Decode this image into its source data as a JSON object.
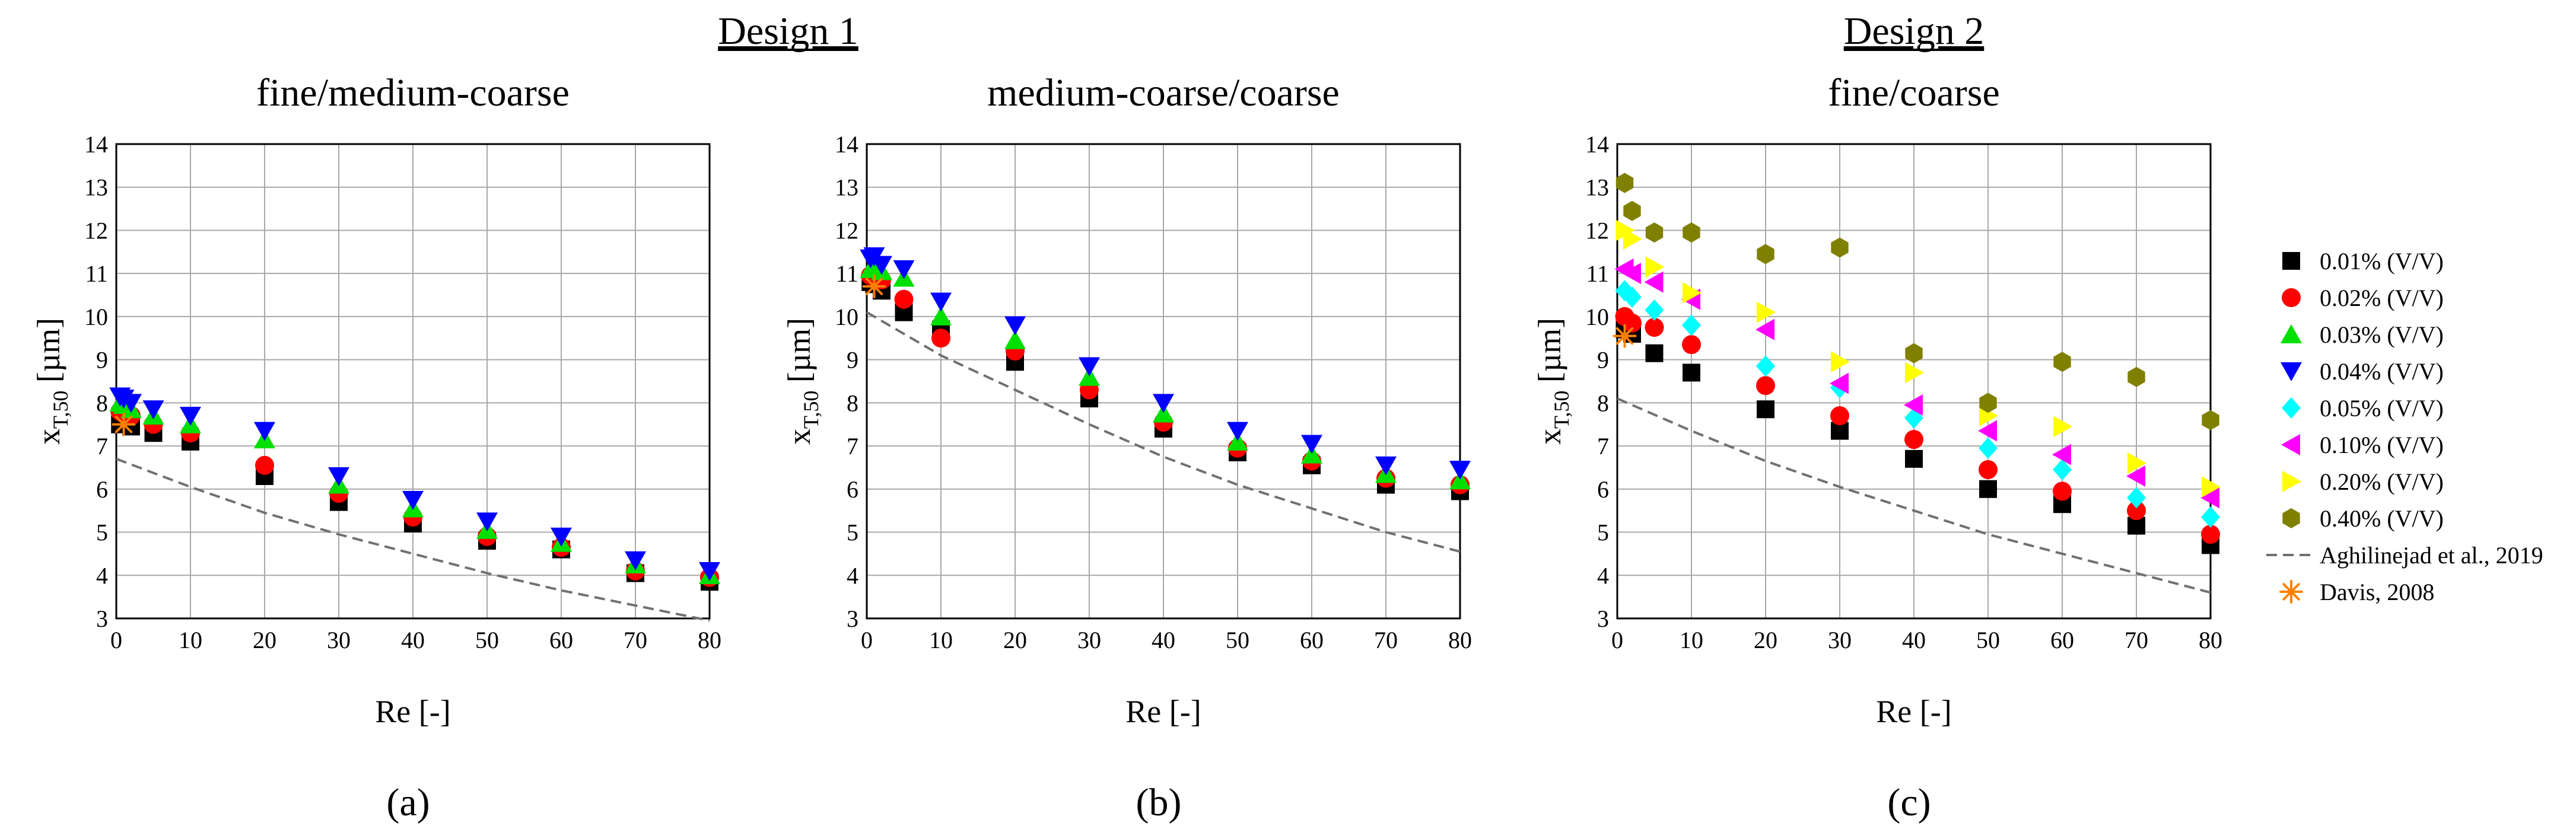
{
  "design_labels": [
    {
      "text": "Design 1",
      "over": [
        0,
        1
      ]
    },
    {
      "text": "Design 2",
      "over": [
        2
      ]
    }
  ],
  "legend": [
    {
      "name": "0.01% (V/V)",
      "marker": "square",
      "color": "#000000"
    },
    {
      "name": "0.02% (V/V)",
      "marker": "circle",
      "color": "#ff0000"
    },
    {
      "name": "0.03% (V/V)",
      "marker": "triangle-up",
      "color": "#00e000"
    },
    {
      "name": "0.04% (V/V)",
      "marker": "triangle-down",
      "color": "#0000ff"
    },
    {
      "name": "0.05% (V/V)",
      "marker": "diamond",
      "color": "#00ffff"
    },
    {
      "name": "0.10% (V/V)",
      "marker": "triangle-left",
      "color": "#ff00ff"
    },
    {
      "name": "0.20% (V/V)",
      "marker": "triangle-right",
      "color": "#ffff00"
    },
    {
      "name": "0.40% (V/V)",
      "marker": "hexagon",
      "color": "#808000"
    },
    {
      "name": "Aghilinejad et al., 2019",
      "marker": "dashed-line",
      "color": "#707070"
    },
    {
      "name": "Davis, 2008",
      "marker": "asterisk",
      "color": "#ff8000"
    }
  ],
  "chart_data": [
    {
      "type": "scatter",
      "panel_label": "(a)",
      "title": "fine/medium-coarse",
      "xlabel": "Re [-]",
      "ylabel": "x",
      "ylabel_sub": "T,50",
      "ylabel_unit": " [µm]",
      "xlim": [
        0,
        80
      ],
      "ylim": [
        3,
        14
      ],
      "xticks": [
        0,
        10,
        20,
        30,
        40,
        50,
        60,
        70,
        80
      ],
      "yticks": [
        3,
        4,
        5,
        6,
        7,
        8,
        9,
        10,
        11,
        12,
        13,
        14
      ],
      "grid": true,
      "x": [
        0.5,
        1,
        2,
        5,
        10,
        20,
        30,
        40,
        50,
        60,
        70,
        80
      ],
      "series": [
        {
          "name": "0.01% (V/V)",
          "values": [
            7.5,
            7.55,
            7.45,
            7.3,
            7.1,
            6.3,
            5.7,
            5.2,
            4.8,
            4.6,
            4.05,
            3.85
          ]
        },
        {
          "name": "0.02% (V/V)",
          "values": [
            7.8,
            7.75,
            7.7,
            7.5,
            7.3,
            6.55,
            5.9,
            5.35,
            4.9,
            4.65,
            4.1,
            3.95
          ]
        },
        {
          "name": "0.03% (V/V)",
          "values": [
            8.0,
            7.95,
            7.85,
            7.7,
            7.5,
            7.15,
            6.1,
            5.55,
            5.05,
            4.75,
            4.25,
            4.0
          ]
        },
        {
          "name": "0.04% (V/V)",
          "values": [
            8.15,
            8.1,
            8.0,
            7.85,
            7.7,
            7.35,
            6.3,
            5.75,
            5.25,
            4.9,
            4.35,
            4.1
          ]
        }
      ],
      "reference_curve": {
        "name": "Aghilinejad et al., 2019",
        "x": [
          0,
          10,
          20,
          30,
          40,
          50,
          60,
          70,
          80
        ],
        "y": [
          6.7,
          6.05,
          5.45,
          4.95,
          4.5,
          4.05,
          3.65,
          3.3,
          2.95
        ]
      },
      "reference_point": {
        "name": "Davis, 2008",
        "x": 1,
        "y": 7.5
      }
    },
    {
      "type": "scatter",
      "panel_label": "(b)",
      "title": "medium-coarse/coarse",
      "xlabel": "Re [-]",
      "ylabel": "x",
      "ylabel_sub": "T,50",
      "ylabel_unit": " [µm]",
      "xlim": [
        0,
        80
      ],
      "ylim": [
        3,
        14
      ],
      "xticks": [
        0,
        10,
        20,
        30,
        40,
        50,
        60,
        70,
        80
      ],
      "yticks": [
        3,
        4,
        5,
        6,
        7,
        8,
        9,
        10,
        11,
        12,
        13,
        14
      ],
      "grid": true,
      "x": [
        0.5,
        1,
        2,
        5,
        10,
        20,
        30,
        40,
        50,
        60,
        70,
        80
      ],
      "series": [
        {
          "name": "0.01% (V/V)",
          "values": [
            10.8,
            10.75,
            10.6,
            10.1,
            9.7,
            8.95,
            8.1,
            7.4,
            6.85,
            6.55,
            6.1,
            5.95
          ]
        },
        {
          "name": "0.02% (V/V)",
          "values": [
            10.95,
            11.0,
            10.85,
            10.4,
            9.5,
            9.2,
            8.3,
            7.55,
            6.95,
            6.65,
            6.25,
            6.1
          ]
        },
        {
          "name": "0.03% (V/V)",
          "values": [
            11.1,
            11.15,
            11.05,
            10.9,
            10.0,
            9.45,
            8.6,
            7.75,
            7.1,
            6.8,
            6.35,
            6.2
          ]
        },
        {
          "name": "0.04% (V/V)",
          "values": [
            11.35,
            11.4,
            11.2,
            11.1,
            10.35,
            9.8,
            8.85,
            8.0,
            7.35,
            7.05,
            6.55,
            6.45
          ]
        }
      ],
      "reference_curve": {
        "name": "Aghilinejad et al., 2019",
        "x": [
          0,
          10,
          20,
          30,
          40,
          50,
          60,
          70,
          80
        ],
        "y": [
          10.1,
          9.1,
          8.3,
          7.5,
          6.75,
          6.1,
          5.55,
          5.0,
          4.55
        ]
      },
      "reference_point": {
        "name": "Davis, 2008",
        "x": 1,
        "y": 10.7
      }
    },
    {
      "type": "scatter",
      "panel_label": "(c)",
      "title": "fine/coarse",
      "xlabel": "Re [-]",
      "ylabel": "x",
      "ylabel_sub": "T,50",
      "ylabel_unit": " [µm]",
      "xlim": [
        0,
        80
      ],
      "ylim": [
        3,
        14
      ],
      "xticks": [
        0,
        10,
        20,
        30,
        40,
        50,
        60,
        70,
        80
      ],
      "yticks": [
        3,
        4,
        5,
        6,
        7,
        8,
        9,
        10,
        11,
        12,
        13,
        14
      ],
      "grid": true,
      "x": [
        1,
        2,
        5,
        10,
        20,
        30,
        40,
        50,
        60,
        70,
        80
      ],
      "series": [
        {
          "name": "0.01% (V/V)",
          "values": [
            9.7,
            9.6,
            9.15,
            8.7,
            7.85,
            7.35,
            6.7,
            6.0,
            5.65,
            5.15,
            4.7
          ]
        },
        {
          "name": "0.02% (V/V)",
          "values": [
            10.0,
            9.85,
            9.75,
            9.35,
            8.4,
            7.7,
            7.15,
            6.45,
            5.95,
            5.5,
            4.95
          ]
        },
        {
          "name": "0.05% (V/V)",
          "values": [
            10.6,
            10.45,
            10.15,
            9.8,
            8.85,
            8.35,
            7.65,
            6.95,
            6.45,
            5.8,
            5.35
          ]
        },
        {
          "name": "0.10% (V/V)",
          "values": [
            11.1,
            11.0,
            10.8,
            10.4,
            9.7,
            8.45,
            7.95,
            7.35,
            6.8,
            6.3,
            5.8
          ]
        },
        {
          "name": "0.20% (V/V)",
          "values": [
            12.0,
            11.8,
            11.15,
            10.55,
            10.1,
            8.95,
            8.7,
            7.7,
            7.45,
            6.6,
            6.05
          ]
        },
        {
          "name": "0.40% (V/V)",
          "values": [
            13.1,
            12.45,
            11.95,
            11.95,
            11.45,
            11.6,
            9.15,
            8.0,
            8.95,
            8.6,
            7.6
          ]
        }
      ],
      "reference_curve": {
        "name": "Aghilinejad et al., 2019",
        "x": [
          0,
          10,
          20,
          30,
          40,
          50,
          60,
          70,
          80
        ],
        "y": [
          8.1,
          7.35,
          6.65,
          6.05,
          5.5,
          4.95,
          4.5,
          4.05,
          3.6
        ]
      },
      "reference_point": {
        "name": "Davis, 2008",
        "x": 1,
        "y": 9.55
      }
    }
  ]
}
